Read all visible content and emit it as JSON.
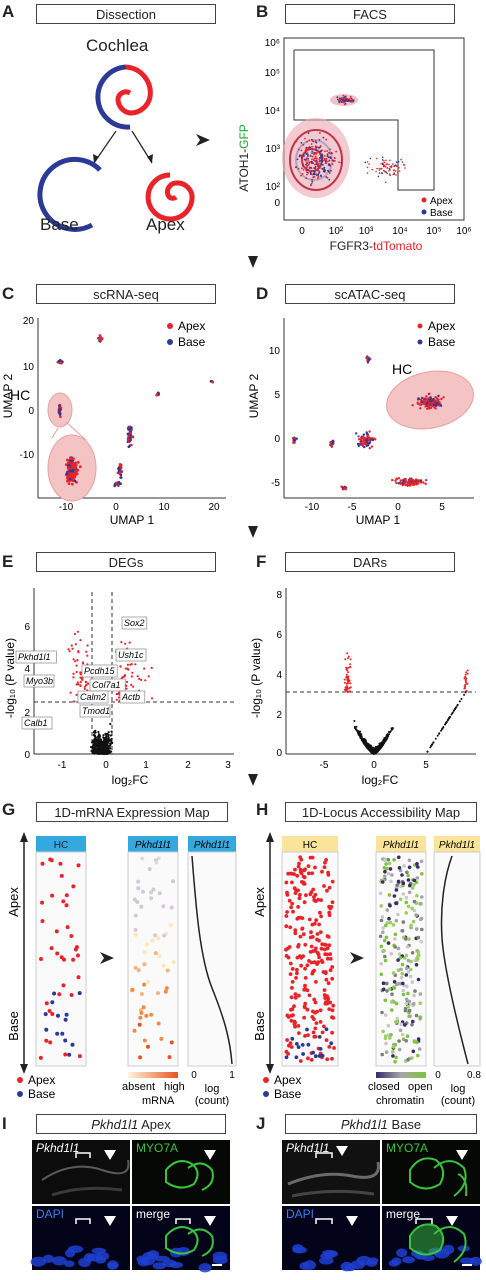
{
  "panels": {
    "A": {
      "label": "A",
      "header": "Dissection",
      "cochlea": "Cochlea",
      "base": "Base",
      "apex": "Apex"
    },
    "B": {
      "label": "B",
      "header": "FACS",
      "ylabel_prefix": "ATOH1-",
      "ylabel_green": "GFP",
      "xlabel_prefix": "FGFR3-",
      "xlabel_red": "tdTomato",
      "yticks": [
        "10⁶",
        "10⁵",
        "10⁴",
        "10³",
        "10²",
        "0"
      ],
      "xticks": [
        "0",
        "10²",
        "10³",
        "10⁴",
        "10⁵",
        "10⁶"
      ],
      "legend": [
        "Apex",
        "Base"
      ]
    },
    "C": {
      "label": "C",
      "header": "scRNA-seq",
      "hc": "HC",
      "xlabel": "UMAP 1",
      "ylabel": "UMAP 2",
      "yticks": [
        "20",
        "10",
        "0",
        "-10"
      ],
      "xticks": [
        "-10",
        "0",
        "10",
        "20"
      ],
      "legend": [
        "Apex",
        "Base"
      ]
    },
    "D": {
      "label": "D",
      "header": "scATAC-seq",
      "hc": "HC",
      "xlabel": "UMAP 1",
      "ylabel": "UMAP 2",
      "yticks": [
        "10",
        "5",
        "0",
        "-5"
      ],
      "xticks": [
        "-10",
        "-5",
        "0",
        "5"
      ],
      "legend": [
        "Apex",
        "Base"
      ]
    },
    "E": {
      "label": "E",
      "header": "DEGs",
      "xlabel": "log₂FC",
      "ylabel": "-log₁₀ (P value)",
      "yticks": [
        "6",
        "4",
        "2",
        "0"
      ],
      "xticks": [
        "-1",
        "0",
        "1",
        "2",
        "3"
      ],
      "genes": [
        "Sox2",
        "Ush1c",
        "Pkhd1l1",
        "Pcdh15",
        "Col7a1",
        "Myo3b",
        "Calm2",
        "Tmod1",
        "Actb",
        "Calb1"
      ]
    },
    "F": {
      "label": "F",
      "header": "DARs",
      "xlabel": "log₂FC",
      "ylabel": "-log₁₀ (P value)",
      "yticks": [
        "8",
        "6",
        "4",
        "2",
        "0"
      ],
      "xticks": [
        "-5",
        "0",
        "5"
      ]
    },
    "G": {
      "label": "G",
      "header": "1D-mRNA Expression Map",
      "col1": "HC",
      "col2": "Pkhd1l1",
      "col3": "Pkhd1l1",
      "apex": "Apex",
      "base": "Base",
      "legend": [
        "Apex",
        "Base"
      ],
      "absent": "absent",
      "high": "high",
      "mrna": "mRNA",
      "log": "log",
      "count": "(count)",
      "xticks": [
        "0",
        "1"
      ]
    },
    "H": {
      "label": "H",
      "header": "1D-Locus Accessibility Map",
      "col1": "HC",
      "col2": "Pkhd1l1",
      "col3": "Pkhd1l1",
      "apex": "Apex",
      "base": "Base",
      "legend": [
        "Apex",
        "Base"
      ],
      "closed": "closed",
      "open": "open",
      "chromatin": "chromatin",
      "log": "log",
      "count": "(count)",
      "xticks": [
        "0",
        "0.8"
      ]
    },
    "I": {
      "label": "I",
      "title_gene": "Pkhd1l1",
      "title_rest": " Apex",
      "tl": "Pkhd1l1",
      "tr": "MYO7A",
      "bl": "DAPI",
      "br": "merge"
    },
    "J": {
      "label": "J",
      "title_gene": "Pkhd1l1",
      "title_rest": " Base",
      "tl": "Pkhd1l1",
      "tr": "MYO7A",
      "bl": "DAPI",
      "br": "merge"
    }
  },
  "colors": {
    "apex": "#e8242a",
    "base": "#2b3a97",
    "gfp": "#1aa62f",
    "hc_header": "#34a9e0",
    "locus_header": "#f9e49a"
  }
}
